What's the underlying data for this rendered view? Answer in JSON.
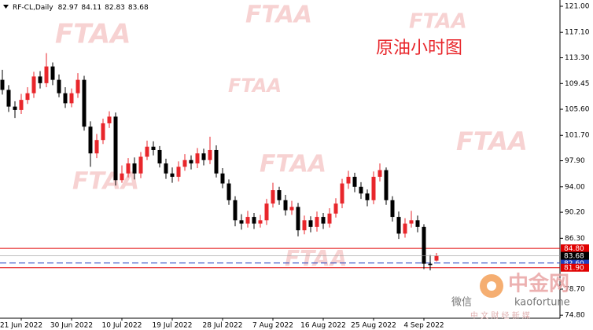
{
  "chart_data": {
    "type": "candlestick",
    "title": "RF-CL,Daily",
    "annotation": "原油小时图",
    "watermark": "FTAA",
    "logo": {
      "name": "中金网",
      "wechat": "微信",
      "id": "kaofortune",
      "slogan": "中 文 财 经 新 媒"
    },
    "up_color": "#e8262b",
    "down_color": "#000000",
    "x": [
      null,
      null,
      null,
      "21 Jun 2022",
      null,
      null,
      null,
      null,
      null,
      null,
      null,
      "30 Jun 2022",
      null,
      null,
      null,
      null,
      null,
      null,
      null,
      "10 Jul 2022",
      null,
      null,
      null,
      null,
      null,
      null,
      null,
      "19 Jul 2022",
      null,
      null,
      null,
      null,
      null,
      null,
      null,
      "28 Jul 2022",
      null,
      null,
      null,
      null,
      null,
      null,
      null,
      "7 Aug 2022",
      null,
      null,
      null,
      null,
      null,
      null,
      null,
      "16 Aug 2022",
      null,
      null,
      null,
      null,
      null,
      null,
      null,
      "25 Aug 2022",
      null,
      null,
      null,
      null,
      null,
      null,
      null,
      "4 Sep 2022",
      null,
      null
    ],
    "open": [
      110,
      108.5,
      106,
      105.5,
      107,
      108,
      110.5,
      109.5,
      112,
      110,
      108,
      106.5,
      108,
      110,
      103,
      99,
      101,
      103.5,
      104.5,
      95,
      96,
      97.5,
      96,
      98.5,
      100,
      99.5,
      97.5,
      96,
      95.5,
      97,
      98,
      97.5,
      99,
      98,
      99.5,
      96,
      94.5,
      92,
      89,
      88.5,
      89.5,
      88.5,
      89,
      91.5,
      93.5,
      92,
      90.5,
      91,
      87.5,
      89,
      88,
      89.5,
      88.5,
      90,
      91.5,
      94.5,
      95.5,
      94,
      93,
      92,
      95.5,
      96.5,
      92,
      89.5,
      87,
      88.5,
      89,
      88,
      82.5,
      82.97
    ],
    "high": [
      111.5,
      109.2,
      106.8,
      107.9,
      108.9,
      111.2,
      111.3,
      114,
      112.6,
      110.8,
      108.9,
      108.7,
      111,
      110.6,
      103.8,
      101.9,
      104.2,
      105.3,
      105.1,
      97.2,
      98.3,
      98.4,
      99.2,
      100.9,
      100.8,
      100.1,
      98.2,
      96.9,
      97.8,
      98.9,
      98.7,
      99.8,
      99.7,
      101.5,
      100.2,
      96.8,
      95.1,
      92.6,
      89.9,
      90.4,
      90.1,
      89.8,
      92.2,
      94.6,
      94,
      92.8,
      91.9,
      91.6,
      89.7,
      89.6,
      90.3,
      90.1,
      90.8,
      92.3,
      95.2,
      96.4,
      96.1,
      94.7,
      93.6,
      96.3,
      97.5,
      96.9,
      92.6,
      90.3,
      89.3,
      90.4,
      89.7,
      88.4,
      83.8,
      84.11
    ],
    "low": [
      107.8,
      105.2,
      104.3,
      104.9,
      106.4,
      107.3,
      108.7,
      108.9,
      109.2,
      107.4,
      105.8,
      105.9,
      107.3,
      102.4,
      97,
      98.3,
      100.4,
      102.8,
      94.2,
      94.6,
      95.4,
      95.1,
      95.3,
      98,
      98.7,
      96.9,
      95.2,
      94.6,
      94.8,
      96.4,
      96.6,
      96.8,
      97.2,
      97.4,
      95.4,
      93.8,
      91.3,
      88.1,
      87.6,
      87.9,
      87.7,
      87.9,
      88.3,
      90.9,
      91.3,
      89.7,
      89.8,
      86.6,
      86.9,
      87.2,
      87.3,
      87.7,
      87.9,
      89.4,
      90.8,
      93.7,
      93.2,
      92.2,
      91.1,
      91.4,
      94.8,
      91.3,
      88.8,
      86.2,
      86.4,
      87.9,
      87.2,
      81.7,
      81.5,
      82.83
    ],
    "close": [
      108.5,
      106,
      105.5,
      107,
      108,
      110.5,
      109.5,
      112,
      110,
      108,
      106.5,
      108,
      110,
      103,
      99,
      101,
      103.5,
      104.5,
      95,
      96,
      97.5,
      96,
      98.5,
      100,
      99.5,
      97.5,
      96,
      95.5,
      97,
      98,
      97.5,
      99,
      98,
      99.5,
      96,
      94.5,
      92,
      89,
      88.5,
      89.5,
      88.5,
      89,
      91.5,
      93.5,
      92,
      90.5,
      91,
      87.5,
      89,
      88,
      89.5,
      88.5,
      90,
      91.5,
      94.5,
      95.5,
      94,
      93,
      92,
      95.5,
      96.5,
      92,
      89.5,
      87,
      88.5,
      89,
      88,
      82.5,
      82.3,
      83.68
    ],
    "ylim": [
      74.35,
      121.94
    ],
    "yticks": [
      {
        "value": 121,
        "label": "121.00"
      },
      {
        "value": 117.1,
        "label": "117.10"
      },
      {
        "value": 113.3,
        "label": "113.30"
      },
      {
        "value": 109.45,
        "label": "109.45"
      },
      {
        "value": 105.6,
        "label": "105.60"
      },
      {
        "value": 101.7,
        "label": "101.70"
      },
      {
        "value": 97.9,
        "label": "97.90"
      },
      {
        "value": 94,
        "label": "94.00"
      },
      {
        "value": 90.2,
        "label": "90.20"
      },
      {
        "value": 86.3,
        "label": "86.30"
      },
      {
        "value": 78.7,
        "label": "78.70"
      },
      {
        "value": 74.8,
        "label": "74.80"
      }
    ],
    "hlines": [
      {
        "value": 84.8,
        "label": "84.80",
        "color": "#e00000",
        "style": "solid"
      },
      {
        "value": 82.6,
        "label": "82.60",
        "color": "#1f3fbf",
        "style": "dashed"
      },
      {
        "value": 81.9,
        "label": "81.90",
        "color": "#e00000",
        "style": "solid"
      }
    ],
    "price_color": "#000000"
  }
}
